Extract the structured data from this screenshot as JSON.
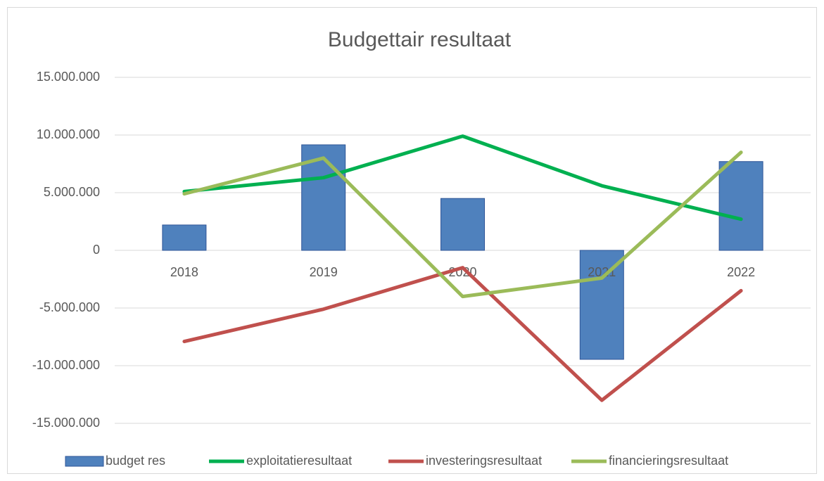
{
  "chart_data": {
    "type": "bar",
    "title": "Budgettair resultaat",
    "categories": [
      "2018",
      "2019",
      "2020",
      "2021",
      "2022"
    ],
    "series": [
      {
        "name": "budget res",
        "type": "bar",
        "color": "#4f81bd",
        "values": [
          2200000,
          9150000,
          4500000,
          -9450000,
          7700000
        ]
      },
      {
        "name": "exploitatieresultaat",
        "type": "line",
        "color": "#00b050",
        "values": [
          5100000,
          6300000,
          9900000,
          5600000,
          2700000
        ]
      },
      {
        "name": "investeringsresultaat",
        "type": "line",
        "color": "#c0504d",
        "values": [
          -7900000,
          -5100000,
          -1500000,
          -13000000,
          -3500000
        ]
      },
      {
        "name": "financieringsresultaat",
        "type": "line",
        "color": "#9bbb59",
        "values": [
          4900000,
          8000000,
          -4000000,
          -2400000,
          8500000
        ]
      }
    ],
    "ylim": [
      -15000000,
      15000000
    ],
    "yticks": [
      {
        "value": -15000000,
        "label": "-15.000.000"
      },
      {
        "value": -10000000,
        "label": "-10.000.000"
      },
      {
        "value": -5000000,
        "label": "-5.000.000"
      },
      0,
      {
        "value": 5000000,
        "label": "5.000.000"
      },
      {
        "value": 10000000,
        "label": "10.000.000"
      },
      {
        "value": 15000000,
        "label": "15.000.000"
      }
    ],
    "grid": true,
    "legend": "bottom"
  }
}
